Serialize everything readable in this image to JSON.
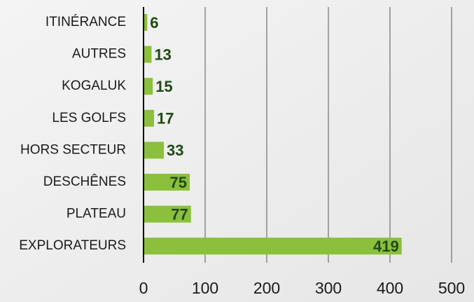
{
  "chart_data": {
    "type": "bar",
    "orientation": "horizontal",
    "categories": [
      "ITINÉRANCE",
      "AUTRES",
      "KOGALUK",
      "LES GOLFS",
      "HORS SECTEUR",
      "DESCHÊNES",
      "PLATEAU",
      "EXPLORATEURS"
    ],
    "values": [
      6,
      13,
      15,
      17,
      33,
      75,
      77,
      419
    ],
    "color": "#8cbf3c",
    "xlim": [
      0,
      500
    ],
    "xticks": [
      0,
      100,
      200,
      300,
      400,
      500
    ],
    "grid": true
  }
}
